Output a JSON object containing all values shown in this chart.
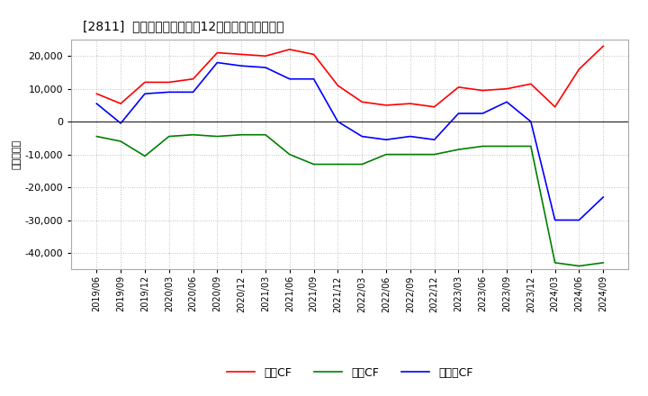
{
  "title": "[2811]  キャッシュフローの12か月移動合計の推移",
  "ylabel": "（百万円）",
  "background_color": "#ffffff",
  "plot_bg_color": "#ffffff",
  "grid_color": "#999999",
  "x_labels": [
    "2019/06",
    "2019/09",
    "2019/12",
    "2020/03",
    "2020/06",
    "2020/09",
    "2020/12",
    "2021/03",
    "2021/06",
    "2021/09",
    "2021/12",
    "2022/03",
    "2022/06",
    "2022/09",
    "2022/12",
    "2023/03",
    "2023/06",
    "2023/09",
    "2023/12",
    "2024/03",
    "2024/06",
    "2024/09"
  ],
  "operating_cf": [
    8500,
    5500,
    12000,
    12000,
    13000,
    21000,
    20500,
    20000,
    22000,
    20500,
    11000,
    6000,
    5000,
    5500,
    4500,
    10500,
    9500,
    10000,
    11500,
    4500,
    16000,
    23000
  ],
  "investing_cf": [
    -4500,
    -6000,
    -10500,
    -4500,
    -4000,
    -4500,
    -4000,
    -4000,
    -10000,
    -13000,
    -13000,
    -13000,
    -10000,
    -10000,
    -10000,
    -8500,
    -7500,
    -7500,
    -7500,
    -43000,
    -44000,
    -43000
  ],
  "free_cf": [
    5500,
    -500,
    8500,
    9000,
    9000,
    18000,
    17000,
    16500,
    13000,
    13000,
    0,
    -4500,
    -5500,
    -4500,
    -5500,
    2500,
    2500,
    6000,
    0,
    -30000,
    -30000,
    -23000
  ],
  "ylim": [
    -45000,
    25000
  ],
  "yticks": [
    -40000,
    -30000,
    -20000,
    -10000,
    0,
    10000,
    20000
  ],
  "line_colors": {
    "operating": "#ff0000",
    "investing": "#008000",
    "free": "#0000ff"
  },
  "legend_labels": [
    "営業CF",
    "投賄CF",
    "フリーCF"
  ]
}
